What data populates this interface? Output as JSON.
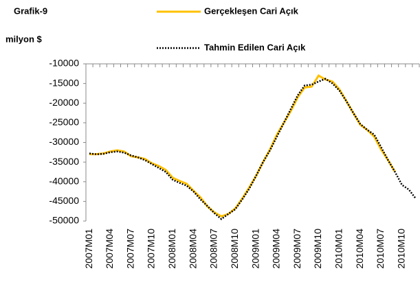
{
  "chart_data": {
    "type": "line",
    "title": "Grafik-9",
    "y_label": "milyon $",
    "categories": [
      "2007M01",
      null,
      null,
      "2007M04",
      null,
      null,
      "2007M07",
      null,
      null,
      "2007M10",
      null,
      null,
      "2008M01",
      null,
      null,
      "2008M04",
      null,
      null,
      "2008M07",
      null,
      null,
      "2008M10",
      null,
      null,
      "2009M01",
      null,
      null,
      "2009M04",
      null,
      null,
      "2009M07",
      null,
      null,
      "2009M10",
      null,
      null,
      "2010M01",
      null,
      null,
      "2010M04",
      null,
      null,
      "2010M07",
      null,
      null,
      "2010M10",
      null,
      null
    ],
    "series": [
      {
        "name": "Gerçekleşen Cari Açık",
        "color": "#FFC000",
        "dash": "solid",
        "values": [
          -33000,
          -33000,
          -32800,
          -32300,
          -32000,
          -32300,
          -33500,
          -33800,
          -34200,
          -35300,
          -36000,
          -37000,
          -39000,
          -39800,
          -40500,
          -42300,
          -44000,
          -46300,
          -47800,
          -48800,
          -48200,
          -46800,
          -44300,
          -41500,
          -38500,
          -35000,
          -31800,
          -28000,
          -25000,
          -22000,
          -18500,
          -16000,
          -15800,
          -13000,
          -14000,
          -14500,
          -16500,
          -19500,
          -22500,
          -25500,
          -26800,
          -28500,
          -31800,
          -34500,
          -37500,
          null,
          null,
          null
        ]
      },
      {
        "name": "Tahmin Edilen Cari Açık",
        "color": "#000000",
        "dash": "dotted",
        "values": [
          -32800,
          -33000,
          -32900,
          -32500,
          -32300,
          -32600,
          -33300,
          -33800,
          -34500,
          -35500,
          -36500,
          -37500,
          -39500,
          -40300,
          -41000,
          -42500,
          -44500,
          -46200,
          -48000,
          -49500,
          -48200,
          -47000,
          -44500,
          -41800,
          -38500,
          -35000,
          -32000,
          -28500,
          -25000,
          -21500,
          -18000,
          -15500,
          -15300,
          -14500,
          -13800,
          -15000,
          -16800,
          -19500,
          -22500,
          -25300,
          -26800,
          -28000,
          -31200,
          -34500,
          -37500,
          -40800,
          -42000,
          -44300
        ]
      }
    ],
    "ylim": [
      -50000,
      -10000
    ],
    "yticks": [
      -50000,
      -45000,
      -40000,
      -35000,
      -30000,
      -25000,
      -20000,
      -15000,
      -10000
    ],
    "grid": false
  }
}
